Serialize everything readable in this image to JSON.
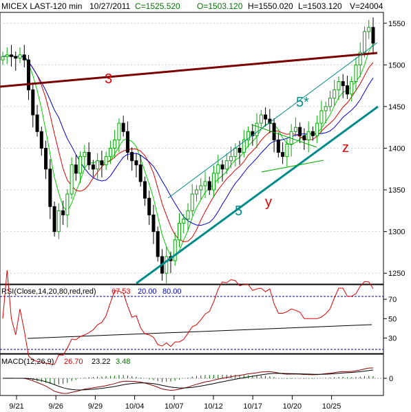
{
  "header": {
    "symbol": "MICEX LAST-120 min",
    "date": "10/27/2011",
    "close": "C=1525.520",
    "open": "O=1503.120",
    "high": "H=1550.020",
    "low": "L=1503.120",
    "volume": "V=24004"
  },
  "indicators": {
    "rsi_label": "RSI(Close,14,20,80,red,red)",
    "rsi_value": "67.53",
    "rsi_low": "20.00",
    "rsi_high": "80.00",
    "macd_label": "MACD(12,26,9)",
    "macd_value": "26.70",
    "signal_value": "23.22",
    "hist_value": "3.48"
  },
  "annotations": {
    "wave_3": "3",
    "wave_5_star": "5*",
    "wave_5": "5",
    "wave_y": "y",
    "wave_z": "z"
  },
  "colors": {
    "up": "#00aa00",
    "down": "#000000",
    "trend_3": "#7b0000",
    "channel": "#008b8b",
    "ma_fast": "#00cc00",
    "ma_mid": "#dd0000",
    "ma_slow": "#0000cc",
    "rsi": "#dd0000",
    "macd": "#880000",
    "signal": "#000000",
    "label_red": "#dd0000",
    "label_teal": "#008b8b"
  },
  "chart_data": {
    "type": "candlestick",
    "y_ticks": [
      1250,
      1300,
      1350,
      1400,
      1450,
      1500,
      1550
    ],
    "ylim": [
      1237,
      1563
    ],
    "x_ticks": [
      "9/21",
      "9/26",
      "9/29",
      "10/04",
      "10/07",
      "10/12",
      "10/17",
      "10/20",
      "10/25"
    ],
    "rsi_ticks": [
      30,
      50,
      70
    ],
    "rsi_ylim": [
      14,
      85
    ],
    "macd_ticks": [
      0
    ],
    "closes": [
      1510,
      1512,
      1510,
      1508,
      1512,
      1506,
      1470,
      1440,
      1420,
      1400,
      1375,
      1330,
      1300,
      1325,
      1320,
      1345,
      1380,
      1370,
      1390,
      1395,
      1380,
      1375,
      1385,
      1380,
      1390,
      1400,
      1410,
      1430,
      1420,
      1395,
      1385,
      1380,
      1360,
      1340,
      1320,
      1300,
      1270,
      1250,
      1270,
      1265,
      1290,
      1310,
      1315,
      1325,
      1345,
      1350,
      1355,
      1360,
      1350,
      1370,
      1380,
      1375,
      1385,
      1390,
      1400,
      1395,
      1410,
      1420,
      1415,
      1430,
      1440,
      1435,
      1430,
      1410,
      1395,
      1390,
      1405,
      1420,
      1425,
      1415,
      1410,
      1420,
      1415,
      1430,
      1445,
      1450,
      1460,
      1470,
      1480,
      1475,
      1465,
      1480,
      1500,
      1515,
      1540,
      1545,
      1526
    ]
  }
}
